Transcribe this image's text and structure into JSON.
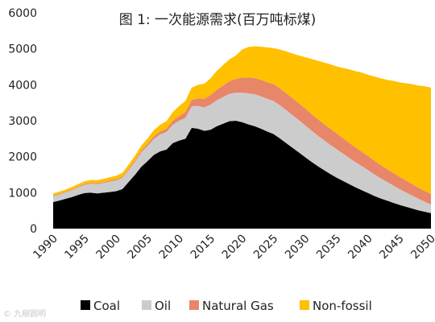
{
  "chart_data": {
    "type": "area",
    "stacked": true,
    "title": "图 1: 一次能源需求(百万吨标煤)",
    "xlabel": "",
    "ylabel": "",
    "xlim": [
      1990,
      2050
    ],
    "ylim": [
      0,
      6000
    ],
    "y_ticks": [
      "0",
      "1000",
      "2000",
      "3000",
      "4000",
      "5000",
      "6000"
    ],
    "x_ticks": [
      "1990",
      "1995",
      "2000",
      "2005",
      "2010",
      "2015",
      "2020",
      "2025",
      "2030",
      "2035",
      "2040",
      "2045",
      "2050"
    ],
    "grid": false,
    "legend_position": "bottom",
    "x": [
      1990,
      1991,
      1992,
      1993,
      1994,
      1995,
      1996,
      1997,
      1998,
      1999,
      2000,
      2001,
      2002,
      2003,
      2004,
      2005,
      2006,
      2007,
      2008,
      2009,
      2010,
      2011,
      2012,
      2013,
      2014,
      2015,
      2016,
      2017,
      2018,
      2019,
      2020,
      2021,
      2022,
      2023,
      2024,
      2025,
      2026,
      2027,
      2028,
      2029,
      2030,
      2031,
      2032,
      2033,
      2034,
      2035,
      2036,
      2037,
      2038,
      2039,
      2040,
      2041,
      2042,
      2043,
      2044,
      2045,
      2046,
      2047,
      2048,
      2049,
      2050
    ],
    "series": [
      {
        "name": "Coal",
        "color": "#000000",
        "values": [
          740,
          780,
          830,
          880,
          940,
          990,
          1000,
          980,
          1000,
          1020,
          1040,
          1100,
          1300,
          1500,
          1720,
          1880,
          2050,
          2150,
          2200,
          2380,
          2450,
          2500,
          2800,
          2780,
          2720,
          2750,
          2850,
          2920,
          2990,
          3000,
          2960,
          2900,
          2850,
          2780,
          2700,
          2630,
          2510,
          2380,
          2250,
          2120,
          1990,
          1860,
          1740,
          1630,
          1520,
          1420,
          1330,
          1240,
          1150,
          1070,
          990,
          910,
          840,
          780,
          720,
          660,
          610,
          560,
          510,
          470,
          430
        ]
      },
      {
        "name": "Oil",
        "color": "#cccccc",
        "values": [
          160,
          170,
          180,
          190,
          210,
          230,
          250,
          260,
          270,
          290,
          300,
          310,
          330,
          360,
          400,
          420,
          450,
          470,
          490,
          510,
          550,
          580,
          600,
          630,
          650,
          700,
          720,
          740,
          760,
          780,
          820,
          860,
          890,
          900,
          910,
          920,
          920,
          920,
          910,
          900,
          890,
          870,
          850,
          830,
          810,
          790,
          760,
          730,
          700,
          670,
          640,
          600,
          560,
          520,
          480,
          440,
          400,
          360,
          320,
          280,
          240
        ]
      },
      {
        "name": "Natural Gas",
        "color": "#e8866a",
        "values": [
          20,
          20,
          20,
          20,
          20,
          25,
          25,
          25,
          25,
          30,
          30,
          30,
          35,
          40,
          50,
          60,
          70,
          80,
          90,
          110,
          130,
          160,
          180,
          210,
          240,
          270,
          290,
          320,
          350,
          380,
          420,
          440,
          450,
          460,
          460,
          470,
          470,
          470,
          470,
          470,
          470,
          460,
          460,
          450,
          450,
          440,
          430,
          420,
          410,
          400,
          390,
          380,
          370,
          360,
          350,
          340,
          330,
          320,
          310,
          300,
          290
        ]
      },
      {
        "name": "Non-fossil",
        "color": "#ffc000",
        "values": [
          60,
          60,
          60,
          70,
          70,
          70,
          80,
          80,
          90,
          90,
          100,
          110,
          120,
          130,
          140,
          150,
          170,
          190,
          210,
          240,
          280,
          310,
          340,
          380,
          420,
          460,
          530,
          570,
          610,
          650,
          780,
          850,
          880,
          920,
          970,
          1000,
          1080,
          1160,
          1240,
          1330,
          1420,
          1530,
          1620,
          1710,
          1790,
          1860,
          1950,
          2040,
          2120,
          2200,
          2260,
          2340,
          2410,
          2480,
          2560,
          2630,
          2700,
          2780,
          2840,
          2910,
          2960
        ]
      }
    ]
  },
  "legend": [
    {
      "label": "Coal",
      "color": "#000000"
    },
    {
      "label": "Oil",
      "color": "#cccccc"
    },
    {
      "label": "Natural Gas",
      "color": "#e8866a"
    },
    {
      "label": "Non-fossil",
      "color": "#ffc000"
    }
  ],
  "watermark": "© 九樹圆明"
}
